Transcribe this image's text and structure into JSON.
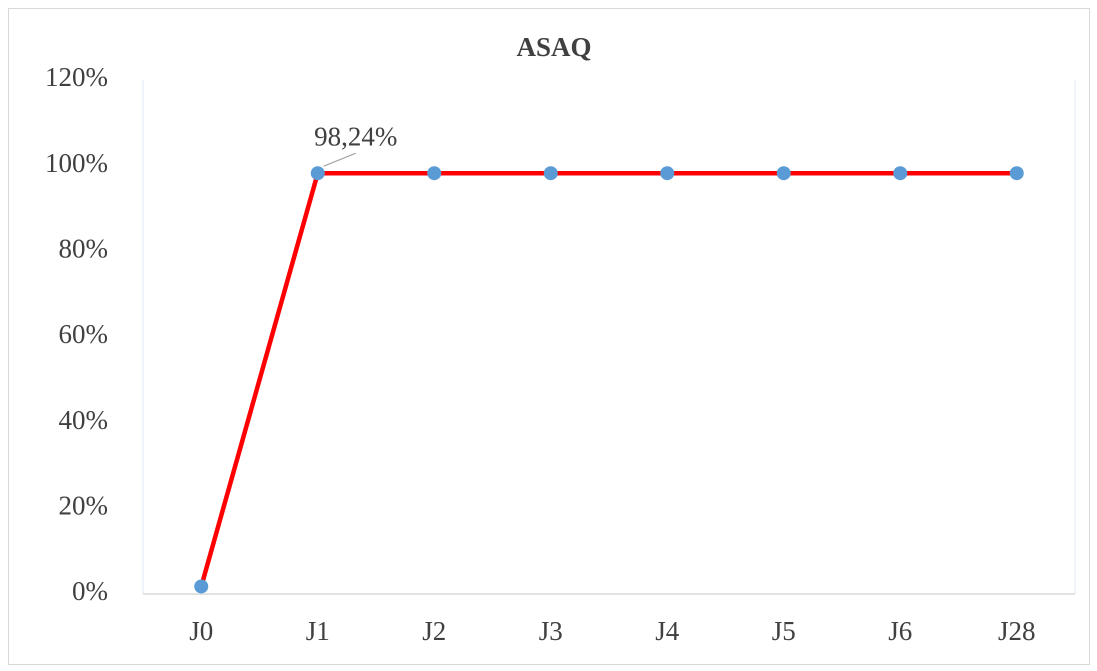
{
  "chart_data": {
    "type": "line",
    "title": "ASAQ",
    "categories": [
      "J0",
      "J1",
      "J2",
      "J3",
      "J4",
      "J5",
      "J6",
      "J28"
    ],
    "series": [
      {
        "color": "#ff0000",
        "marker_color": "#5b9bd5",
        "values": [
          1.76,
          98.24,
          98.24,
          98.24,
          98.24,
          98.24,
          98.24,
          98.24
        ],
        "value_labels": [
          null,
          "98,24%",
          null,
          null,
          null,
          null,
          null,
          null
        ]
      }
    ],
    "ylim": [
      0,
      120
    ],
    "yticks": [
      {
        "value": 0,
        "label": "0%"
      },
      {
        "value": 20,
        "label": "20%"
      },
      {
        "value": 40,
        "label": "40%"
      },
      {
        "value": 60,
        "label": "60%"
      },
      {
        "value": 80,
        "label": "80%"
      },
      {
        "value": 100,
        "label": "100%"
      },
      {
        "value": 120,
        "label": "120%"
      }
    ],
    "grid": false
  }
}
